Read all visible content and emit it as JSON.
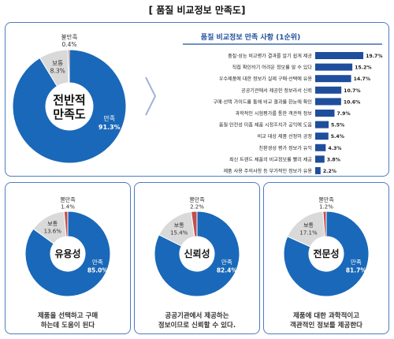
{
  "page_title": "[ 품질 비교정보 만족도]",
  "chart_data": [
    {
      "type": "pie",
      "title": "전반적 만족도",
      "title_lines": [
        "전반적",
        "만족도"
      ],
      "slices": [
        {
          "label": "만족",
          "value": 91.3,
          "display": "91.3%",
          "color": "#1a68b9"
        },
        {
          "label": "보통",
          "value": 8.3,
          "display": "8.3%",
          "color": "#d9d9d9"
        },
        {
          "label": "불만족",
          "value": 0.4,
          "display": "0.4%",
          "color": "#c0504d"
        }
      ]
    },
    {
      "type": "bar",
      "title": "품질 비교정보 만족 사항",
      "subtitle": "(1순위)",
      "orientation": "horizontal",
      "categories": [
        "품질·성능 비교평가 결과를 알기 쉽게 제공",
        "직접 확인하기 어려운 정보를 알 수 있다",
        "우수제품에 대한 정보가 실제 구매·선택에 유용",
        "공공기관에서 제공한 정보라서 신뢰",
        "구매·선택 가이드를 통해 비교 결과를 한눈에 확인",
        "과학적인 시험평가를 통한 객관적 정보",
        "품질·안전성 미흡 제품 시정조치가 공익에 도움",
        "비교 대상 제품 선정이 공정",
        "친환경성 평가 정보가 유익",
        "최신 트렌드 제품의 비교정보를 빨리 제공",
        "제품 사용 주의사항 등 부가적인 정보가 유용"
      ],
      "values": [
        19.7,
        15.2,
        14.7,
        10.7,
        10.6,
        7.9,
        5.5,
        5.4,
        4.3,
        3.8,
        2.2
      ],
      "value_labels": [
        "19.7%",
        "15.2%",
        "14.7%",
        "10.7%",
        "10.6%",
        "7.9%",
        "5.5%",
        "5.4%",
        "4.3%",
        "3.8%",
        "2.2%"
      ],
      "xlim": [
        0,
        20
      ],
      "color": "#1f4e9c"
    },
    {
      "type": "pie",
      "title": "유용성",
      "caption": [
        "제품을 선택하고 구매",
        "하는데 도움이 된다"
      ],
      "slices": [
        {
          "label": "만족",
          "value": 85.0,
          "display": "85.0%",
          "color": "#1a68b9"
        },
        {
          "label": "보통",
          "value": 13.6,
          "display": "13.6%",
          "color": "#d9d9d9"
        },
        {
          "label": "불만족",
          "value": 1.4,
          "display": "1.4%",
          "color": "#c0504d"
        }
      ]
    },
    {
      "type": "pie",
      "title": "신뢰성",
      "caption": [
        "공공기관에서 제공하는",
        "정보이므로 신뢰할 수 있다."
      ],
      "slices": [
        {
          "label": "만족",
          "value": 82.4,
          "display": "82.4%",
          "color": "#1a68b9"
        },
        {
          "label": "보통",
          "value": 15.4,
          "display": "15.4%",
          "color": "#d9d9d9"
        },
        {
          "label": "불만족",
          "value": 2.2,
          "display": "2.2%",
          "color": "#c0504d"
        }
      ]
    },
    {
      "type": "pie",
      "title": "전문성",
      "caption": [
        "제품에 대한 과학적이고",
        "객관적인 정보를 제공한다"
      ],
      "slices": [
        {
          "label": "만족",
          "value": 81.7,
          "display": "81.7%",
          "color": "#1a68b9"
        },
        {
          "label": "보통",
          "value": 17.1,
          "display": "17.1%",
          "color": "#d9d9d9"
        },
        {
          "label": "불만족",
          "value": 1.2,
          "display": "1.2%",
          "color": "#c0504d"
        }
      ]
    }
  ]
}
